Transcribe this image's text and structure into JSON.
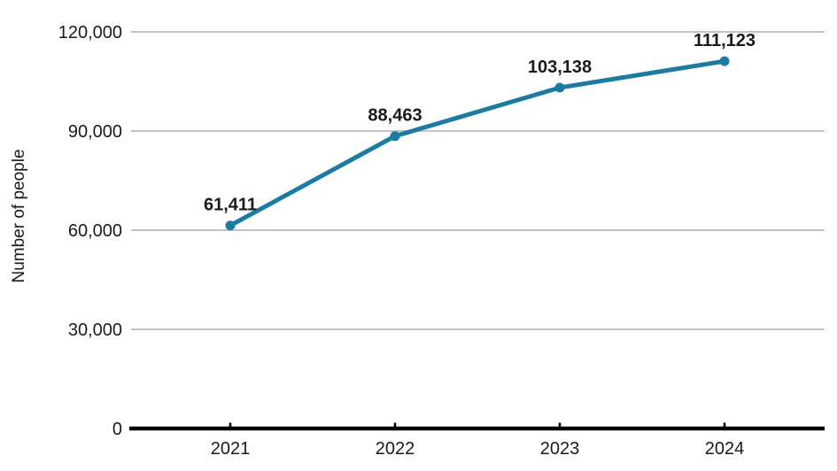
{
  "chart_data": {
    "type": "line",
    "title": "",
    "categories": [
      "2021",
      "2022",
      "2023",
      "2024"
    ],
    "series": [
      {
        "name": "Number of people",
        "values": [
          61411,
          88463,
          103138,
          111123
        ],
        "value_labels": [
          "61,411",
          "88,463",
          "103,138",
          "111,123"
        ]
      }
    ],
    "xlabel": "",
    "ylabel": "Number of people",
    "ylim": [
      0,
      120000
    ],
    "yticks": [
      0,
      30000,
      60000,
      90000,
      120000
    ],
    "ytick_labels": [
      "0",
      "30,000",
      "60,000",
      "90,000",
      "120,000"
    ],
    "grid": true,
    "legend": false,
    "colors": {
      "line": "#1c7ba0",
      "marker": "#1c7ba0",
      "value_label": "#1c7ba0",
      "grid_line": "#c3c3c3",
      "axis_line": "#000000",
      "text": "#1a1a1a",
      "background": "#ffffff"
    }
  }
}
